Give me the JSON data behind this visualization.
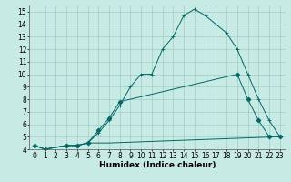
{
  "xlabel": "Humidex (Indice chaleur)",
  "xlim": [
    -0.5,
    23.5
  ],
  "ylim": [
    4,
    15.5
  ],
  "yticks": [
    4,
    5,
    6,
    7,
    8,
    9,
    10,
    11,
    12,
    13,
    14,
    15
  ],
  "xticks": [
    0,
    1,
    2,
    3,
    4,
    5,
    6,
    7,
    8,
    9,
    10,
    11,
    12,
    13,
    14,
    15,
    16,
    17,
    18,
    19,
    20,
    21,
    22,
    23
  ],
  "background_color": "#c8eae4",
  "grid_color": "#a0ccc6",
  "line_color": "#006666",
  "lines": [
    {
      "x": [
        0,
        1,
        3,
        4,
        5,
        6,
        7,
        8,
        9,
        10,
        11,
        12,
        13,
        14,
        15,
        16,
        17,
        18,
        19,
        20,
        21,
        22,
        23
      ],
      "y": [
        4.3,
        4.0,
        4.3,
        4.3,
        4.5,
        5.3,
        6.3,
        7.5,
        9.0,
        10.0,
        10.0,
        12.0,
        13.0,
        14.7,
        15.2,
        14.7,
        14.0,
        13.3,
        12.0,
        10.0,
        8.0,
        6.3,
        5.0
      ],
      "marker": "+"
    },
    {
      "x": [
        0,
        1,
        3,
        4,
        5,
        6,
        7,
        8,
        19,
        20,
        21,
        22,
        23
      ],
      "y": [
        4.3,
        4.0,
        4.3,
        4.3,
        4.5,
        5.5,
        6.5,
        7.8,
        10.0,
        8.0,
        6.3,
        5.0,
        5.0
      ],
      "marker": "D"
    },
    {
      "x": [
        0,
        1,
        3,
        4,
        5,
        6,
        7,
        23
      ],
      "y": [
        4.3,
        4.0,
        4.3,
        4.3,
        4.5,
        4.5,
        4.5,
        5.0
      ],
      "marker": null
    }
  ],
  "tick_fontsize": 5.5,
  "label_fontsize": 6.5
}
